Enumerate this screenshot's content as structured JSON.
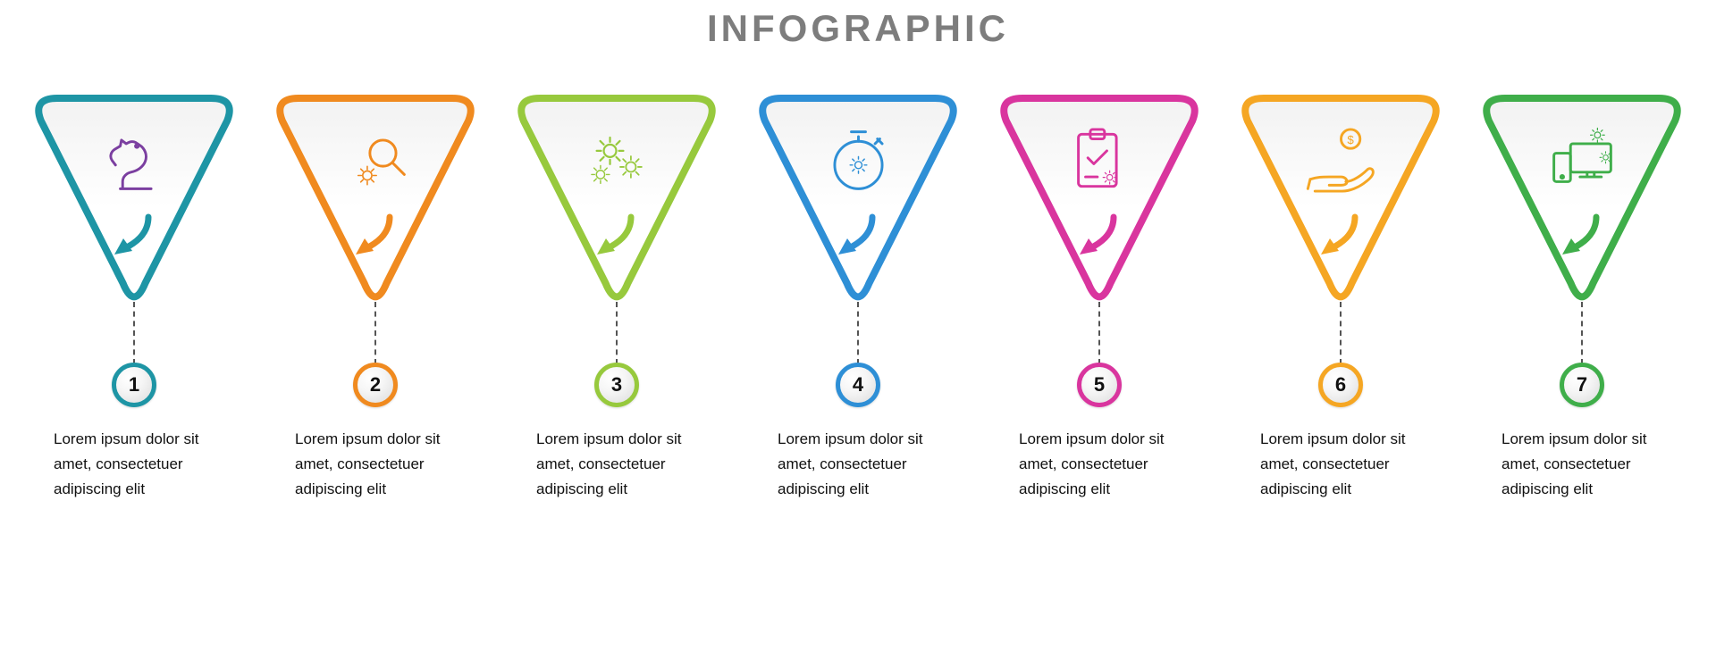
{
  "title": {
    "text": "INFOGRAPHIC",
    "color": "#7d7d7d",
    "font_size": 42
  },
  "layout": {
    "background": "#ffffff",
    "triangle_stroke_width": 8,
    "triangle_corner_radius": 28,
    "badge_border_width": 5,
    "connector_color": "#555555",
    "desc_color": "#111111",
    "desc_font_size": 17
  },
  "steps": [
    {
      "number": "1",
      "color": "#1e95a5",
      "icon": "chess-knight",
      "icon_color": "#7b3fa0",
      "desc": "Lorem ipsum dolor sit amet, consectetuer adipiscing elit"
    },
    {
      "number": "2",
      "color": "#f08a1f",
      "icon": "gear-magnify",
      "icon_color": "#f08a1f",
      "desc": "Lorem ipsum dolor sit amet, consectetuer adipiscing elit"
    },
    {
      "number": "3",
      "color": "#97c93d",
      "icon": "gears",
      "icon_color": "#97c93d",
      "desc": "Lorem ipsum dolor sit amet, consectetuer adipiscing elit"
    },
    {
      "number": "4",
      "color": "#2e8fd6",
      "icon": "stopwatch-gear",
      "icon_color": "#2e8fd6",
      "desc": "Lorem ipsum dolor sit amet, consectetuer adipiscing elit"
    },
    {
      "number": "5",
      "color": "#d9359e",
      "icon": "clipboard-check",
      "icon_color": "#d9359e",
      "desc": "Lorem ipsum dolor sit amet, consectetuer adipiscing elit"
    },
    {
      "number": "6",
      "color": "#f5a623",
      "icon": "hand-coin",
      "icon_color": "#f5a623",
      "desc": "Lorem ipsum dolor sit amet, consectetuer adipiscing elit"
    },
    {
      "number": "7",
      "color": "#3fae4a",
      "icon": "devices-gears",
      "icon_color": "#3fae4a",
      "desc": "Lorem ipsum dolor sit amet, consectetuer adipiscing elit"
    }
  ]
}
